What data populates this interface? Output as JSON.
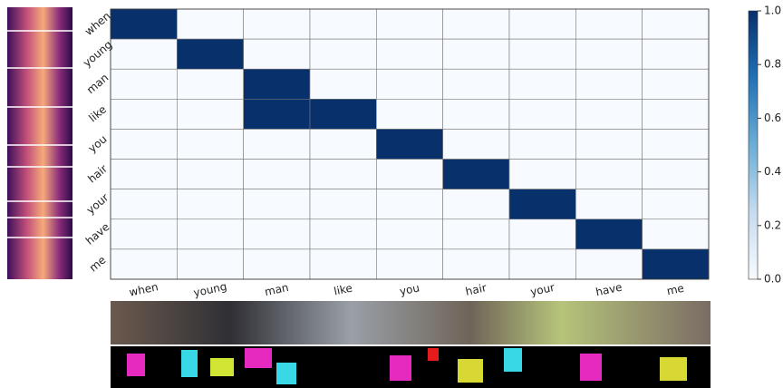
{
  "chart_data": {
    "type": "heatmap",
    "rows": [
      "when",
      "young",
      "man",
      "like",
      "you",
      "hair",
      "your",
      "have",
      "me"
    ],
    "columns": [
      "when",
      "young",
      "man",
      "like",
      "you",
      "hair",
      "your",
      "have",
      "me"
    ],
    "z": [
      [
        1,
        0,
        0,
        0,
        0,
        0,
        0,
        0,
        0
      ],
      [
        0,
        1,
        0,
        0,
        0,
        0,
        0,
        0,
        0
      ],
      [
        0,
        0,
        1,
        0,
        0,
        0,
        0,
        0,
        0
      ],
      [
        0,
        0,
        1,
        1,
        0,
        0,
        0,
        0,
        0
      ],
      [
        0,
        0,
        0,
        0,
        1,
        0,
        0,
        0,
        0
      ],
      [
        0,
        0,
        0,
        0,
        0,
        1,
        0,
        0,
        0
      ],
      [
        0,
        0,
        0,
        0,
        0,
        0,
        1,
        0,
        0
      ],
      [
        0,
        0,
        0,
        0,
        0,
        0,
        0,
        1,
        0
      ],
      [
        0,
        0,
        0,
        0,
        0,
        0,
        0,
        0,
        1
      ]
    ],
    "colors": [
      "#f7fbff",
      "#c6dbef",
      "#6baed6",
      "#2171b5",
      "#08306b"
    ],
    "zlim": [
      0,
      1
    ],
    "zticks": [
      {
        "value": 0,
        "label": "0.0"
      },
      0.2,
      0.4,
      0.6,
      0.8,
      {
        "value": 1,
        "label": "1.0"
      }
    ]
  }
}
